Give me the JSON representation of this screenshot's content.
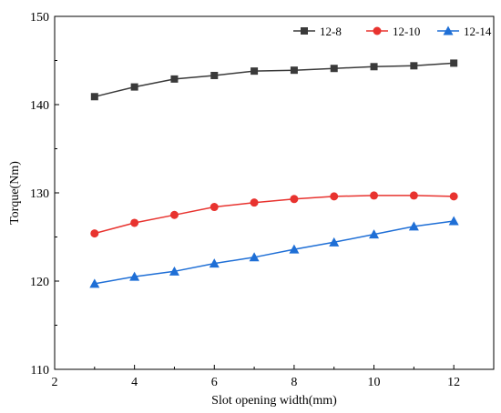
{
  "chart_data": {
    "type": "line",
    "title": "",
    "xlabel": "Slot opening width(mm)",
    "ylabel": "Torque(Nm)",
    "xlim": [
      2,
      13
    ],
    "ylim": [
      110,
      150
    ],
    "xticks": [
      2,
      4,
      6,
      8,
      10,
      12
    ],
    "yticks": [
      110,
      120,
      130,
      140,
      150
    ],
    "legend_position": "top-right",
    "grid": false,
    "x": [
      3,
      4,
      5,
      6,
      7,
      8,
      9,
      10,
      11,
      12
    ],
    "series": [
      {
        "name": "12-8",
        "color": "#3a3a3a",
        "marker": "square",
        "values": [
          140.9,
          142.0,
          142.9,
          143.3,
          143.8,
          143.9,
          144.1,
          144.3,
          144.4,
          144.7
        ]
      },
      {
        "name": "12-10",
        "color": "#e8332f",
        "marker": "circle",
        "values": [
          125.4,
          126.6,
          127.5,
          128.4,
          128.9,
          129.3,
          129.6,
          129.7,
          129.7,
          129.6
        ]
      },
      {
        "name": "12-14",
        "color": "#1f6fd6",
        "marker": "triangle",
        "values": [
          119.7,
          120.5,
          121.1,
          122.0,
          122.7,
          123.6,
          124.4,
          125.3,
          126.2,
          126.8
        ]
      }
    ]
  }
}
